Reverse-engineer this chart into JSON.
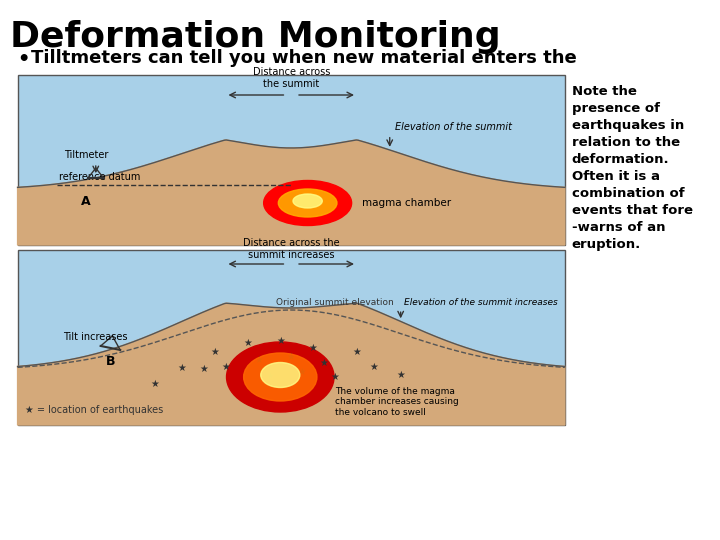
{
  "title": "Deformation Monitoring",
  "bullet_text": "Tilltmeters can tell you when new material enters the",
  "note_text": "Note the\npresence of\nearthquakes in\nrelation to the\ndeformation.\nOften it is a\ncombination of\nevents that fore\n-warns of an\neruption.",
  "bg_color": "#ffffff",
  "sky_color": "#a8d0e8",
  "ground_color": "#d4a97a",
  "diagram_A": {
    "label": "A",
    "tiltmeter_label": "Tiltmeter",
    "distance_label": "Distance across\nthe summit",
    "elevation_label": "Elevation of the summit",
    "ref_datum_label": "reference datum",
    "magma_label": "magma chamber"
  },
  "diagram_B": {
    "label": "B",
    "tilt_label": "Tilt increases",
    "distance_label": "Distance across the\nsummit increases",
    "elevation_label": "Elevation of the summit increases",
    "original_label": "Original summit elevation",
    "magma_label": "The volume of the magma\nchamber increases causing\nthe volcano to swell",
    "eq_label": "★ = location of earthquakes"
  }
}
